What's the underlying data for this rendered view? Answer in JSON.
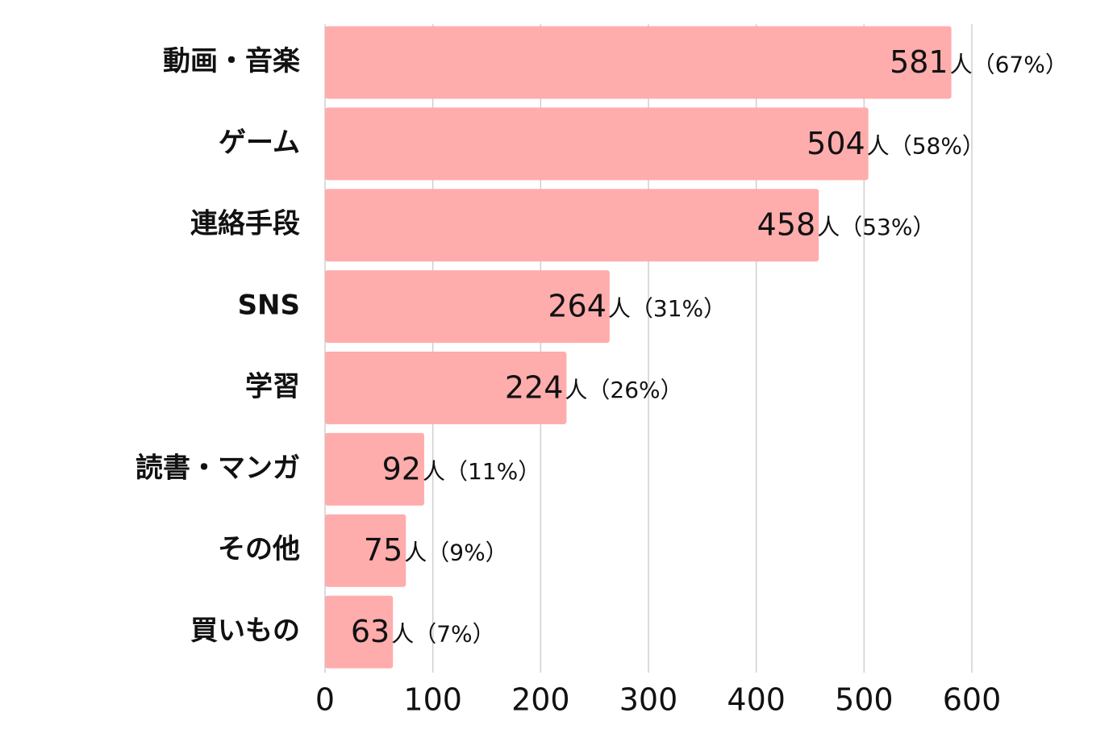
{
  "chart_data": {
    "type": "bar",
    "orientation": "horizontal",
    "categories": [
      "動画・音楽",
      "ゲーム",
      "連絡手段",
      "SNS",
      "学習",
      "読書・マンガ",
      "その他",
      "買いもの"
    ],
    "values": [
      581,
      504,
      458,
      264,
      224,
      92,
      75,
      63
    ],
    "unit": "人",
    "share_labels": [
      "（67%）",
      "（58%）",
      "（53%）",
      "（31%）",
      "（26%）",
      "（11%）",
      "（9%）",
      "（7%）"
    ],
    "color": "#ffacad",
    "xlim": [
      0,
      600
    ],
    "xticks": [
      0,
      100,
      200,
      300,
      400,
      500,
      600
    ],
    "grid": true
  }
}
